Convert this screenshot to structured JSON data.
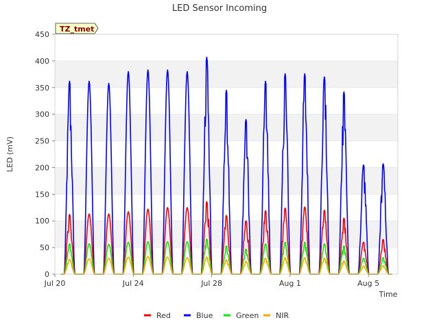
{
  "chart_data": {
    "type": "line",
    "title": "LED Sensor Incoming",
    "xlabel": "Time",
    "ylabel": "LED (mV)",
    "ylim": [
      0,
      450
    ],
    "yticks": [
      0,
      50,
      100,
      150,
      200,
      250,
      300,
      350,
      400,
      450
    ],
    "xlim": [
      0,
      17.5
    ],
    "xticks": [
      {
        "label": "Jul 20",
        "day": 0
      },
      {
        "label": "Jul 24",
        "day": 4
      },
      {
        "label": "Jul 28",
        "day": 8
      },
      {
        "label": "Aug 1",
        "day": 12
      },
      {
        "label": "Aug 5",
        "day": 16
      }
    ],
    "grid": "horizontal bands",
    "badge": "TZ_tmet",
    "legend_position": "bottom-center",
    "daily_peaks": {
      "days": [
        0.75,
        1.75,
        2.75,
        3.75,
        4.75,
        5.75,
        6.75,
        7.75,
        8.75,
        9.75,
        10.75,
        11.75,
        12.75,
        13.75,
        14.75,
        15.75,
        16.75
      ],
      "series": [
        {
          "name": "Red",
          "color": "#ff0000",
          "peaks": [
            112,
            113,
            113,
            117,
            122,
            125,
            125,
            136,
            110,
            100,
            119,
            124,
            126,
            120,
            105,
            60,
            65
          ]
        },
        {
          "name": "Blue",
          "color": "#0000ff",
          "peaks": [
            362,
            362,
            358,
            380,
            383,
            383,
            380,
            407,
            345,
            290,
            362,
            376,
            376,
            370,
            342,
            205,
            207
          ]
        },
        {
          "name": "Green",
          "color": "#00ee00",
          "peaks": [
            57,
            57,
            56,
            60,
            61,
            61,
            61,
            66,
            53,
            47,
            57,
            60,
            60,
            57,
            53,
            30,
            31
          ]
        },
        {
          "name": "NIR",
          "color": "#ffa500",
          "peaks": [
            28,
            29,
            30,
            32,
            33,
            32,
            31,
            32,
            27,
            24,
            30,
            31,
            31,
            30,
            25,
            15,
            16
          ]
        }
      ]
    },
    "legend": [
      {
        "name": "Red",
        "color": "#ff0000"
      },
      {
        "name": "Blue",
        "color": "#0000ff"
      },
      {
        "name": "Green",
        "color": "#00ee00"
      },
      {
        "name": "NIR",
        "color": "#ffa500"
      }
    ]
  }
}
